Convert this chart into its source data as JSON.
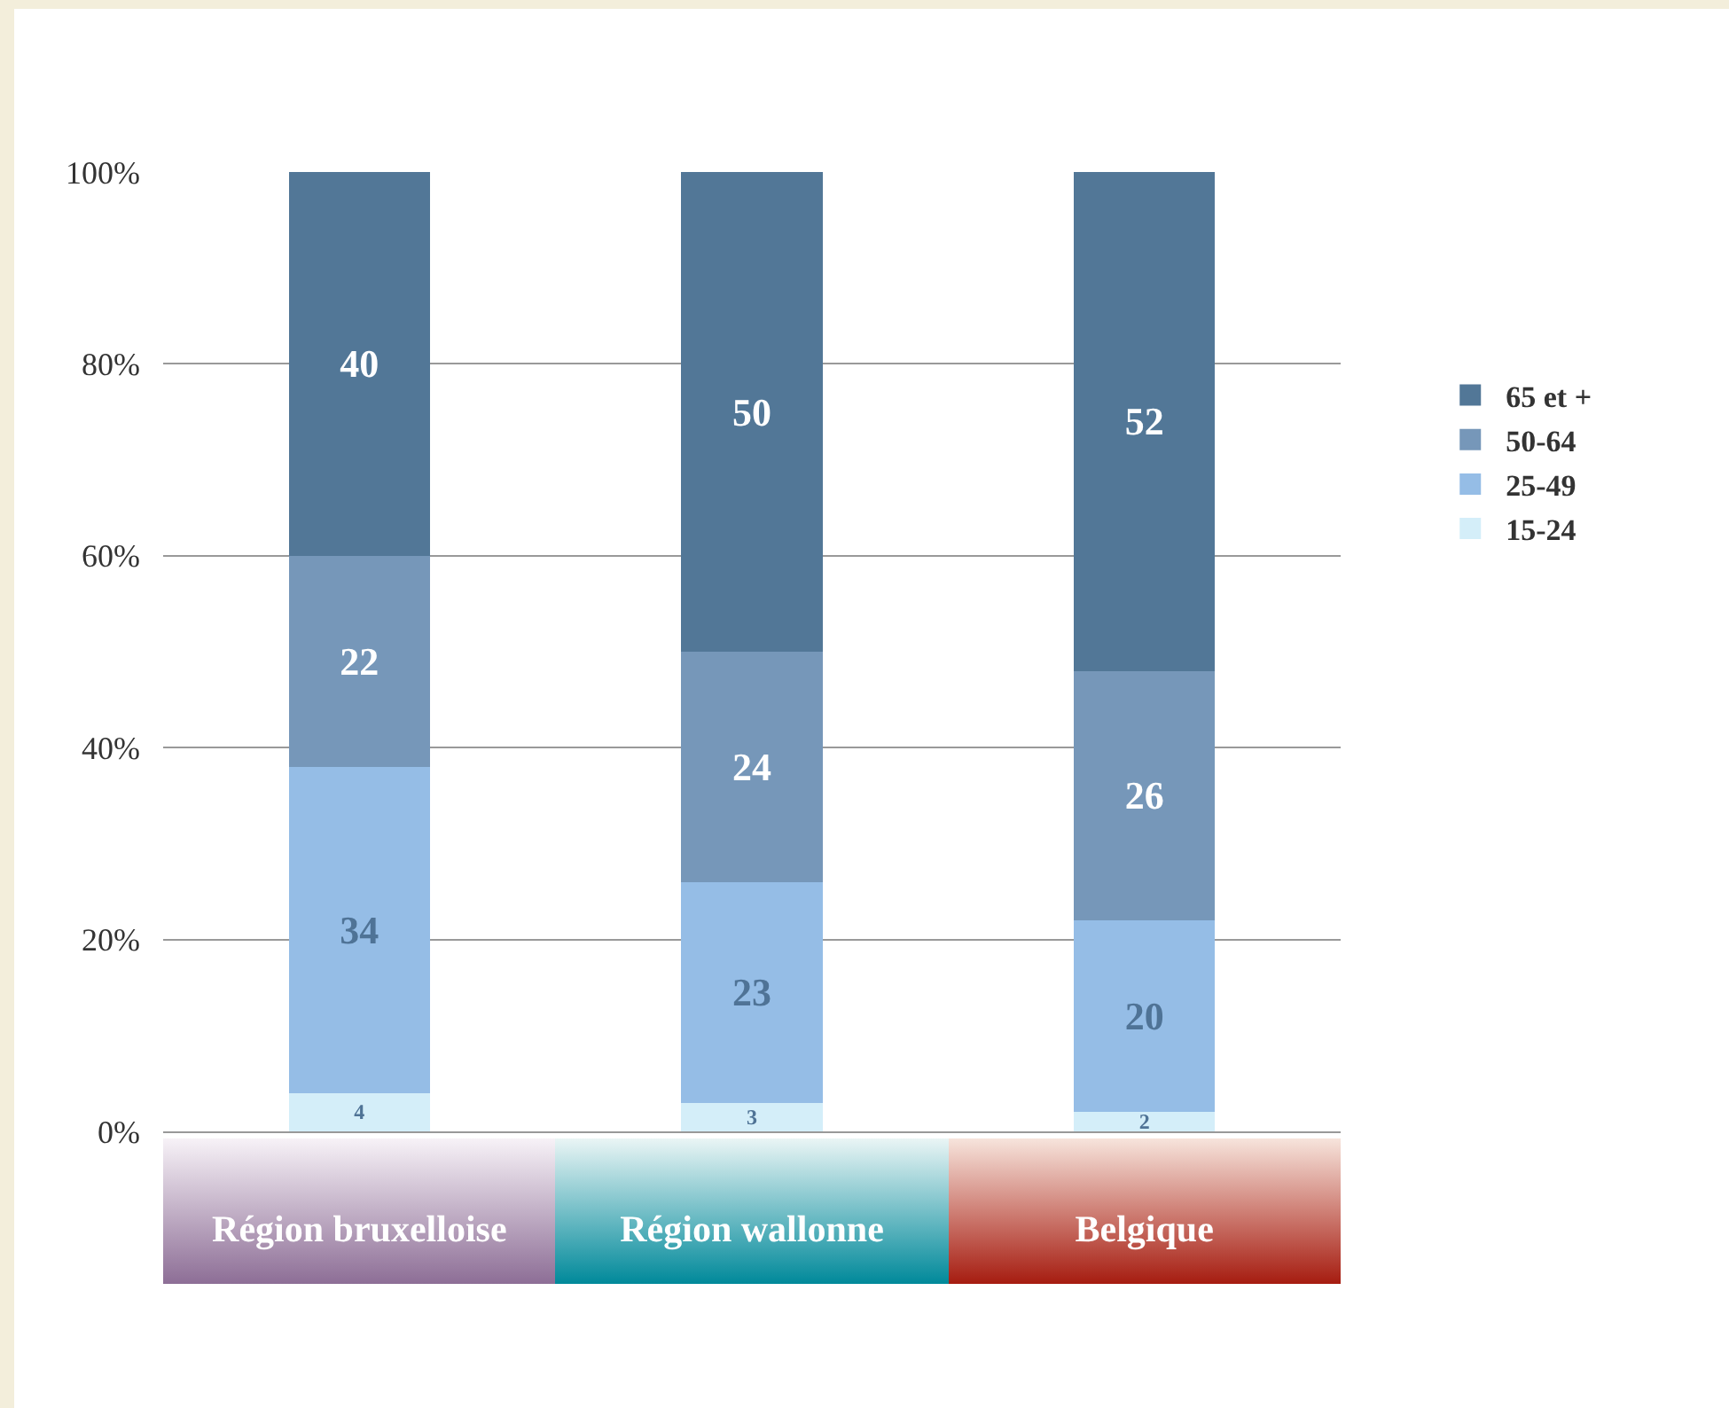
{
  "chart_data": {
    "type": "bar",
    "stacked": true,
    "categories": [
      "Région bruxelloise",
      "Région wallonne",
      "Belgique"
    ],
    "series": [
      {
        "name": "15-24",
        "color": "#d4eef9",
        "values": [
          4,
          3,
          2
        ]
      },
      {
        "name": "25-49",
        "color": "#95bde6",
        "values": [
          34,
          23,
          20
        ]
      },
      {
        "name": "50-64",
        "color": "#7697b9",
        "values": [
          22,
          24,
          26
        ]
      },
      {
        "name": "65 et +",
        "color": "#527797",
        "values": [
          40,
          50,
          52
        ]
      }
    ],
    "ylim": [
      0,
      100
    ],
    "yticks": [
      {
        "value": 0,
        "label": "0%"
      },
      {
        "value": 20,
        "label": "20%"
      },
      {
        "value": 40,
        "label": "40%"
      },
      {
        "value": 60,
        "label": "60%"
      },
      {
        "value": 80,
        "label": "80%"
      },
      {
        "value": 100,
        "label": "100%"
      }
    ],
    "grid": "y",
    "legend": "right",
    "data_labels": true
  }
}
